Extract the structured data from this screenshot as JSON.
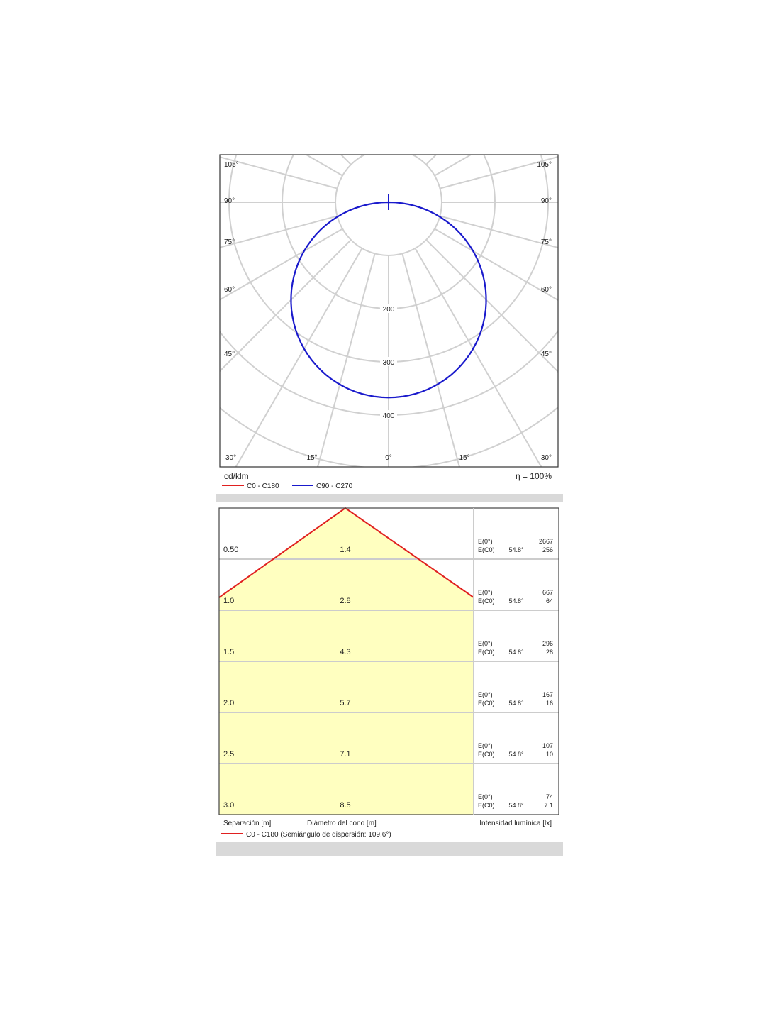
{
  "chart_data": [
    {
      "type": "polar",
      "unit_label": "cd/klm",
      "efficiency_label": "η = 100%",
      "radial_ticks": [
        200,
        300,
        400
      ],
      "angle_labels_left": [
        "105°",
        "90°",
        "75°",
        "60°",
        "45°",
        "30°"
      ],
      "angle_labels_bottom": [
        "15°",
        "0°",
        "15°"
      ],
      "angle_labels_right": [
        "105°",
        "90°",
        "75°",
        "60°",
        "45°",
        "30°"
      ],
      "series": [
        {
          "name": "C0 - C180",
          "color": "#e02020"
        },
        {
          "name": "C90 - C270",
          "color": "#1a1acc",
          "peak_intensity": 367,
          "angles": [
            0,
            15,
            30,
            45,
            60,
            75,
            90
          ],
          "values": [
            367,
            354,
            318,
            260,
            184,
            95,
            0
          ]
        }
      ],
      "grid": true
    },
    {
      "type": "table",
      "columns": [
        "Separación [m]",
        "Diámetro del cono [m]",
        "Intensidad lumínica [lx]"
      ],
      "legend": "C0 - C180 (Semiángulo de dispersión: 109.6°)",
      "legend_color": "#e02020",
      "fill_color": "#ffffc0",
      "rows": [
        {
          "sep": "0.50",
          "diam": "1.4",
          "e0_label": "E(0°)",
          "ec0_label": "E(C0)",
          "angle": "54.8°",
          "e0": "2667",
          "ec0": "256"
        },
        {
          "sep": "1.0",
          "diam": "2.8",
          "e0_label": "E(0°)",
          "ec0_label": "E(C0)",
          "angle": "54.8°",
          "e0": "667",
          "ec0": "64"
        },
        {
          "sep": "1.5",
          "diam": "4.3",
          "e0_label": "E(0°)",
          "ec0_label": "E(C0)",
          "angle": "54.8°",
          "e0": "296",
          "ec0": "28"
        },
        {
          "sep": "2.0",
          "diam": "5.7",
          "e0_label": "E(0°)",
          "ec0_label": "E(C0)",
          "angle": "54.8°",
          "e0": "167",
          "ec0": "16"
        },
        {
          "sep": "2.5",
          "diam": "7.1",
          "e0_label": "E(0°)",
          "ec0_label": "E(C0)",
          "angle": "54.8°",
          "e0": "107",
          "ec0": "10"
        },
        {
          "sep": "3.0",
          "diam": "8.5",
          "e0_label": "E(0°)",
          "ec0_label": "E(C0)",
          "angle": "54.8°",
          "e0": "74",
          "ec0": "7.1"
        }
      ]
    }
  ]
}
